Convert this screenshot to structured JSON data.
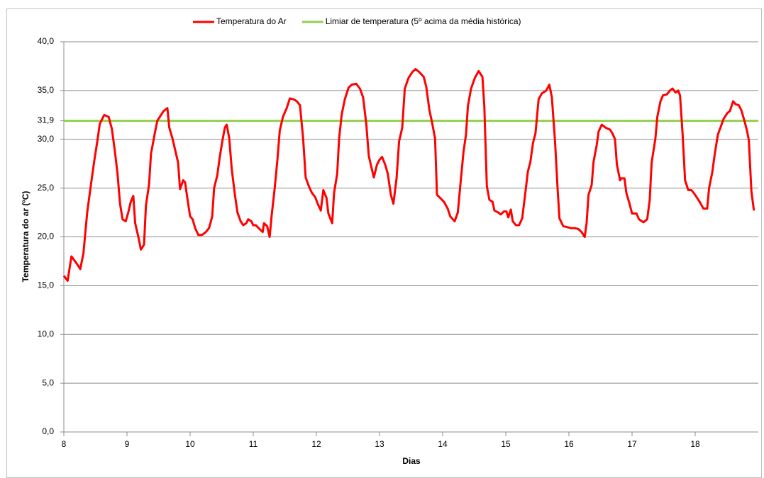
{
  "chart_data": {
    "type": "line",
    "y_label": "Temperatura do ar (ºC)",
    "x_label": "Dias",
    "xlim": [
      8,
      19
    ],
    "xticks": [
      8,
      9,
      10,
      11,
      12,
      13,
      14,
      15,
      16,
      17,
      18
    ],
    "ylim": [
      0,
      40
    ],
    "yticks": [
      {
        "value": 0,
        "label": "0,0"
      },
      {
        "value": 5,
        "label": "5,0"
      },
      {
        "value": 10,
        "label": "10,0"
      },
      {
        "value": 15,
        "label": "15,0"
      },
      {
        "value": 20,
        "label": "20,0"
      },
      {
        "value": 25,
        "label": "25,0"
      },
      {
        "value": 30,
        "label": "30,0"
      },
      {
        "value": 31.9,
        "label": "31,9"
      },
      {
        "value": 35,
        "label": "35,0"
      },
      {
        "value": 40,
        "label": "40,0"
      }
    ],
    "grid": true,
    "legend": "top",
    "series": [
      {
        "name": "Temperatura do Ar",
        "color": "#ff0000",
        "x": [
          8.0,
          8.06,
          8.12,
          8.2,
          8.26,
          8.31,
          8.37,
          8.43,
          8.48,
          8.53,
          8.57,
          8.64,
          8.71,
          8.76,
          8.81,
          8.85,
          8.89,
          8.93,
          8.98,
          9.02,
          9.06,
          9.1,
          9.13,
          9.18,
          9.22,
          9.27,
          9.3,
          9.35,
          9.38,
          9.44,
          9.48,
          9.54,
          9.58,
          9.64,
          9.67,
          9.72,
          9.76,
          9.81,
          9.84,
          9.89,
          9.92,
          9.96,
          10.0,
          10.04,
          10.08,
          10.13,
          10.19,
          10.25,
          10.3,
          10.35,
          10.38,
          10.43,
          10.47,
          10.51,
          10.55,
          10.58,
          10.62,
          10.66,
          10.71,
          10.75,
          10.8,
          10.84,
          10.89,
          10.92,
          10.97,
          11.0,
          11.04,
          11.1,
          11.15,
          11.17,
          11.22,
          11.26,
          11.29,
          11.34,
          11.38,
          11.42,
          11.47,
          11.53,
          11.58,
          11.64,
          11.69,
          11.74,
          11.79,
          11.83,
          11.88,
          11.93,
          11.98,
          12.02,
          12.07,
          12.11,
          12.16,
          12.19,
          12.25,
          12.28,
          12.33,
          12.36,
          12.4,
          12.45,
          12.51,
          12.56,
          12.63,
          12.69,
          12.74,
          12.79,
          12.83,
          12.88,
          12.91,
          12.96,
          13.0,
          13.04,
          13.09,
          13.13,
          13.18,
          13.22,
          13.27,
          13.31,
          13.36,
          13.4,
          13.46,
          13.52,
          13.57,
          13.63,
          13.7,
          13.74,
          13.79,
          13.83,
          13.88,
          13.91,
          13.96,
          14.02,
          14.08,
          14.12,
          14.19,
          14.24,
          14.28,
          14.33,
          14.37,
          14.4,
          14.45,
          14.51,
          14.57,
          14.63,
          14.66,
          14.7,
          14.74,
          14.79,
          14.82,
          14.88,
          14.92,
          14.97,
          15.01,
          15.04,
          15.08,
          15.11,
          15.16,
          15.21,
          15.26,
          15.3,
          15.35,
          15.39,
          15.43,
          15.47,
          15.52,
          15.57,
          15.64,
          15.69,
          15.73,
          15.78,
          15.82,
          15.85,
          15.91,
          15.97,
          16.03,
          16.09,
          16.15,
          16.2,
          16.25,
          16.28,
          16.31,
          16.36,
          16.39,
          16.44,
          16.47,
          16.52,
          16.58,
          16.65,
          16.69,
          16.73,
          16.76,
          16.81,
          16.83,
          16.88,
          16.91,
          16.96,
          17.0,
          17.07,
          17.11,
          17.18,
          17.24,
          17.28,
          17.31,
          17.37,
          17.4,
          17.45,
          17.49,
          17.55,
          17.6,
          17.64,
          17.69,
          17.73,
          17.76,
          17.8,
          17.84,
          17.89,
          17.94,
          18.0,
          18.07,
          18.13,
          18.19,
          18.22,
          18.27,
          18.31,
          18.36,
          18.4,
          18.45,
          18.51,
          18.55,
          18.6,
          18.64,
          18.69,
          18.73,
          18.78,
          18.82,
          18.85,
          18.89,
          18.93
        ],
        "values": [
          16.0,
          15.5,
          18.0,
          17.3,
          16.7,
          18.3,
          22.5,
          25.4,
          27.7,
          29.8,
          31.6,
          32.5,
          32.3,
          31.1,
          28.7,
          26.5,
          23.4,
          21.8,
          21.6,
          22.5,
          23.6,
          24.2,
          21.4,
          20.0,
          18.7,
          19.2,
          23.2,
          25.4,
          28.5,
          30.6,
          31.9,
          32.5,
          32.9,
          33.2,
          31.2,
          30.1,
          29.0,
          27.6,
          24.9,
          25.8,
          25.6,
          23.8,
          22.1,
          21.8,
          20.9,
          20.2,
          20.2,
          20.5,
          20.9,
          22.1,
          25.0,
          26.3,
          28.2,
          29.8,
          31.2,
          31.5,
          30.1,
          26.9,
          24.3,
          22.5,
          21.6,
          21.2,
          21.4,
          21.8,
          21.6,
          21.2,
          21.2,
          20.8,
          20.5,
          21.4,
          21.1,
          20.0,
          22.1,
          25.0,
          27.7,
          30.9,
          32.3,
          33.2,
          34.2,
          34.1,
          33.9,
          33.5,
          30.1,
          26.1,
          25.2,
          24.5,
          24.1,
          23.4,
          22.7,
          24.8,
          24.0,
          22.4,
          21.4,
          24.5,
          26.5,
          30.1,
          32.5,
          34.1,
          35.3,
          35.6,
          35.7,
          35.2,
          34.3,
          31.6,
          28.3,
          26.9,
          26.1,
          27.4,
          27.9,
          28.2,
          27.4,
          26.5,
          24.3,
          23.4,
          26.0,
          29.8,
          31.2,
          35.2,
          36.3,
          36.9,
          37.2,
          36.9,
          36.4,
          35.4,
          33.0,
          31.8,
          30.1,
          24.3,
          24.0,
          23.6,
          22.9,
          22.1,
          21.6,
          22.5,
          25.3,
          28.7,
          30.5,
          33.4,
          35.2,
          36.3,
          37.0,
          36.4,
          33.4,
          25.2,
          23.8,
          23.6,
          22.7,
          22.5,
          22.3,
          22.6,
          22.6,
          22.0,
          22.8,
          21.6,
          21.2,
          21.2,
          21.9,
          24.0,
          26.7,
          27.7,
          29.6,
          30.6,
          34.1,
          34.7,
          35.0,
          35.6,
          34.3,
          29.8,
          25.0,
          21.9,
          21.1,
          21.0,
          20.9,
          20.9,
          20.8,
          20.5,
          20.0,
          21.4,
          24.3,
          25.3,
          27.7,
          29.4,
          30.8,
          31.5,
          31.2,
          31.0,
          30.6,
          30.0,
          27.4,
          25.8,
          26.0,
          26.0,
          24.5,
          23.4,
          22.4,
          22.4,
          21.8,
          21.5,
          21.8,
          23.8,
          27.6,
          30.1,
          32.3,
          33.9,
          34.5,
          34.6,
          35.0,
          35.2,
          34.8,
          35.0,
          34.5,
          30.6,
          25.8,
          24.8,
          24.8,
          24.3,
          23.6,
          22.9,
          22.9,
          25.0,
          26.6,
          28.5,
          30.5,
          31.2,
          32.1,
          32.7,
          32.9,
          33.9,
          33.6,
          33.5,
          33.0,
          31.9,
          30.9,
          29.9,
          24.7,
          22.7
        ]
      },
      {
        "name": "Limiar de temperatura (5º acima da média histórica)",
        "color": "#92d050",
        "x": [
          8,
          19
        ],
        "values": [
          31.9,
          31.9
        ]
      }
    ]
  }
}
